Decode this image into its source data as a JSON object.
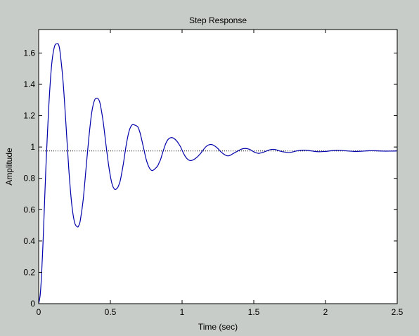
{
  "chart_data": {
    "type": "line",
    "title": "Step Response",
    "xlabel": "Time (sec)",
    "ylabel": "Amplitude",
    "xlim": [
      0,
      2.5
    ],
    "ylim": [
      0,
      1.75
    ],
    "xticks": [
      0,
      0.5,
      1,
      1.5,
      2,
      2.5
    ],
    "xtick_labels": [
      "0",
      "0.5",
      "1",
      "1.5",
      "2",
      "2.5"
    ],
    "yticks": [
      0,
      0.2,
      0.4,
      0.6,
      0.8,
      1,
      1.2,
      1.4,
      1.6
    ],
    "ytick_labels": [
      "0",
      "0.2",
      "0.4",
      "0.6",
      "0.8",
      "1",
      "1.2",
      "1.4",
      "1.6"
    ],
    "grid": false,
    "reference_line": {
      "y": 0.975,
      "style": "dotted",
      "color": "#000000"
    },
    "series": [
      {
        "color": "#0000aa",
        "x": [
          0,
          0.01,
          0.02,
          0.03,
          0.04,
          0.05,
          0.07,
          0.09,
          0.11,
          0.13,
          0.14,
          0.15,
          0.17,
          0.19,
          0.21,
          0.23,
          0.25,
          0.27,
          0.28,
          0.29,
          0.31,
          0.33,
          0.35,
          0.37,
          0.39,
          0.41,
          0.42,
          0.43,
          0.45,
          0.47,
          0.49,
          0.51,
          0.53,
          0.55,
          0.56,
          0.57,
          0.59,
          0.61,
          0.63,
          0.65,
          0.67,
          0.69,
          0.7,
          0.71,
          0.73,
          0.75,
          0.77,
          0.79,
          0.81,
          0.83,
          0.84,
          0.85,
          0.87,
          0.89,
          0.91,
          0.93,
          0.95,
          0.97,
          0.98,
          0.99,
          1.01,
          1.03,
          1.05,
          1.07,
          1.09,
          1.11,
          1.12,
          1.13,
          1.15,
          1.17,
          1.19,
          1.21,
          1.23,
          1.25,
          1.26,
          1.27,
          1.29,
          1.31,
          1.33,
          1.35,
          1.37,
          1.39,
          1.4,
          1.41,
          1.43,
          1.45,
          1.47,
          1.49,
          1.51,
          1.53,
          1.54,
          1.55,
          1.57,
          1.59,
          1.61,
          1.63,
          1.65,
          1.67,
          1.68,
          1.7,
          1.75,
          1.8,
          1.85,
          1.9,
          1.95,
          2.0,
          2.05,
          2.1,
          2.15,
          2.2,
          2.25,
          2.3,
          2.35,
          2.4,
          2.45,
          2.5
        ],
        "y": [
          0,
          0.05,
          0.18,
          0.38,
          0.62,
          0.86,
          1.25,
          1.52,
          1.64,
          1.66,
          1.65,
          1.6,
          1.42,
          1.15,
          0.86,
          0.64,
          0.52,
          0.49,
          0.5,
          0.53,
          0.66,
          0.86,
          1.06,
          1.22,
          1.3,
          1.31,
          1.3,
          1.27,
          1.16,
          1.01,
          0.87,
          0.77,
          0.73,
          0.74,
          0.76,
          0.79,
          0.89,
          1.01,
          1.1,
          1.14,
          1.14,
          1.13,
          1.11,
          1.08,
          1.0,
          0.92,
          0.87,
          0.85,
          0.86,
          0.88,
          0.9,
          0.92,
          0.98,
          1.03,
          1.055,
          1.06,
          1.05,
          1.03,
          1.015,
          1.0,
          0.96,
          0.93,
          0.915,
          0.915,
          0.925,
          0.94,
          0.95,
          0.96,
          0.985,
          1.005,
          1.015,
          1.015,
          1.005,
          0.99,
          0.98,
          0.97,
          0.955,
          0.945,
          0.945,
          0.955,
          0.965,
          0.975,
          0.98,
          0.985,
          0.99,
          0.99,
          0.985,
          0.975,
          0.965,
          0.96,
          0.96,
          0.962,
          0.968,
          0.975,
          0.982,
          0.985,
          0.984,
          0.978,
          0.975,
          0.97,
          0.965,
          0.975,
          0.98,
          0.975,
          0.97,
          0.972,
          0.977,
          0.978,
          0.975,
          0.972,
          0.973,
          0.976,
          0.976,
          0.974,
          0.974,
          0.975
        ]
      }
    ]
  }
}
